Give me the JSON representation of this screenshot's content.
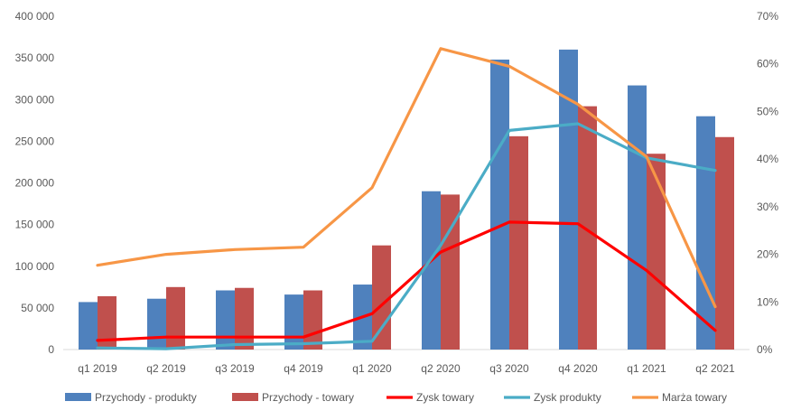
{
  "chart_data": {
    "type": "bar",
    "categories": [
      "q1 2019",
      "q2 2019",
      "q3 2019",
      "q4 2019",
      "q1 2020",
      "q2 2020",
      "q3 2020",
      "q4 2020",
      "q1 2021",
      "q2 2021"
    ],
    "left_axis": {
      "ylim": [
        0,
        400000
      ],
      "ticks": [
        0,
        50000,
        100000,
        150000,
        200000,
        250000,
        300000,
        350000,
        400000
      ],
      "tick_labels": [
        "0",
        "50 000",
        "100 000",
        "150 000",
        "200 000",
        "250 000",
        "300 000",
        "350 000",
        "400 000"
      ]
    },
    "right_axis": {
      "ylim": [
        0,
        0.7
      ],
      "ticks": [
        0,
        0.1,
        0.2,
        0.3,
        0.4,
        0.5,
        0.6,
        0.7
      ],
      "tick_labels": [
        "0%",
        "10%",
        "20%",
        "30%",
        "40%",
        "50%",
        "60%",
        "70%"
      ]
    },
    "bar_series": [
      {
        "name": "Przychody - produkty",
        "color": "#4f81bd",
        "values": [
          57000,
          61000,
          71000,
          66000,
          78000,
          190000,
          348000,
          360000,
          317000,
          280000
        ]
      },
      {
        "name": "Przychody - towary",
        "color": "#c0504d",
        "values": [
          64000,
          75000,
          74000,
          71000,
          125000,
          186000,
          256000,
          292000,
          235000,
          255000
        ]
      }
    ],
    "line_series": [
      {
        "name": "Zysk towary",
        "color": "#ff0000",
        "axis": "left",
        "values": [
          11000,
          15000,
          15000,
          15000,
          43000,
          117000,
          153000,
          151000,
          95000,
          23000
        ]
      },
      {
        "name": "Zysk produkty",
        "color": "#4bacc6",
        "axis": "left",
        "values": [
          2000,
          1000,
          6000,
          7000,
          10000,
          125000,
          263000,
          271000,
          230000,
          215000
        ]
      },
      {
        "name": "Marża towary",
        "color": "#f79646",
        "axis": "right",
        "values": [
          0.177,
          0.2,
          0.21,
          0.215,
          0.34,
          0.632,
          0.595,
          0.515,
          0.405,
          0.09
        ]
      }
    ],
    "legend": [
      "Przychody - produkty",
      "Przychody - towary",
      "Zysk towary",
      "Zysk produkty",
      "Marża towary"
    ],
    "legend_position": "bottom",
    "grid": false
  }
}
